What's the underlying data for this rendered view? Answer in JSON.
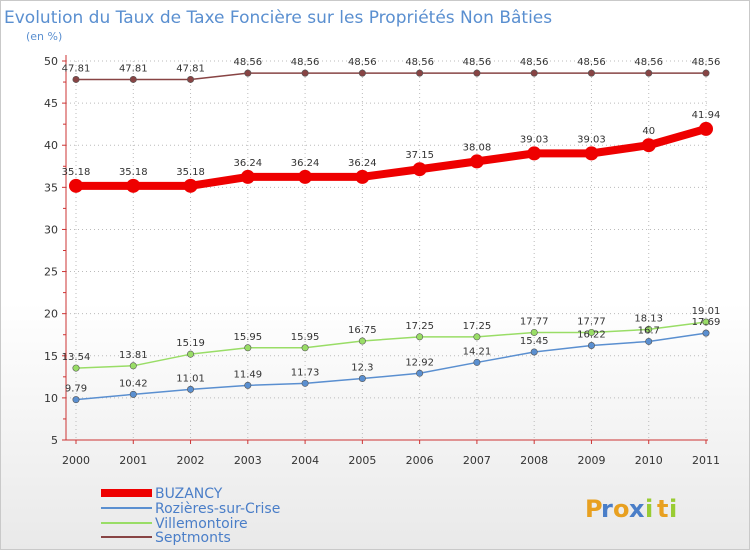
{
  "chart_data": {
    "type": "line",
    "title": "Evolution du Taux de Taxe Foncière sur les Propriétés Non Bâties",
    "subtitle": "(en %)",
    "xlabel": "",
    "ylabel": "(en %)",
    "categories": [
      "2000",
      "2001",
      "2002",
      "2003",
      "2004",
      "2005",
      "2006",
      "2007",
      "2008",
      "2009",
      "2010",
      "2011"
    ],
    "ylim": [
      5,
      50
    ],
    "yticks": [
      5,
      10,
      15,
      20,
      25,
      30,
      35,
      40,
      45,
      50
    ],
    "legend_position": "bottom-left",
    "series": [
      {
        "name": "BUZANCY",
        "color": "#ee0000",
        "values": [
          35.18,
          35.18,
          35.18,
          36.24,
          36.24,
          36.24,
          37.15,
          38.08,
          39.03,
          39.03,
          40,
          41.94
        ],
        "labels": [
          "35.18",
          "35.18",
          "35.18",
          "36.24",
          "36.24",
          "36.24",
          "37.15",
          "38.08",
          "39.03",
          "39.03",
          "40",
          "41.94"
        ]
      },
      {
        "name": "Rozières-sur-Crise",
        "color": "#5a8fd0",
        "values": [
          9.79,
          10.42,
          11.01,
          11.49,
          11.73,
          12.3,
          12.92,
          14.21,
          15.45,
          16.22,
          16.7,
          17.69
        ],
        "labels": [
          "9.79",
          "10.42",
          "11.01",
          "11.49",
          "11.73",
          "12.3",
          "12.92",
          "14.21",
          "15.45",
          "16.22",
          "16.7",
          "17.69"
        ]
      },
      {
        "name": "Villemontoire",
        "color": "#99dd66",
        "values": [
          13.54,
          13.81,
          15.19,
          15.95,
          15.95,
          16.75,
          17.25,
          17.25,
          17.77,
          17.77,
          18.13,
          19.01
        ],
        "labels": [
          "13.54",
          "13.81",
          "15.19",
          "15.95",
          "15.95",
          "16.75",
          "17.25",
          "17.25",
          "17.77",
          "17.77",
          "18.13",
          "19.01"
        ]
      },
      {
        "name": "Septmonts",
        "color": "#884444",
        "values": [
          47.81,
          47.81,
          47.81,
          48.56,
          48.56,
          48.56,
          48.56,
          48.56,
          48.56,
          48.56,
          48.56,
          48.56
        ],
        "labels": [
          "47.81",
          "47.81",
          "47.81",
          "48.56",
          "48.56",
          "48.56",
          "48.56",
          "48.56",
          "48.56",
          "48.56",
          "48.56",
          "48.56"
        ]
      }
    ]
  },
  "logo": {
    "letters": [
      "P",
      "r",
      "o",
      "x",
      "i",
      "t",
      "i"
    ],
    "colors": [
      "#e8a020",
      "#4a7ec8",
      "#e8a020",
      "#4a7ec8",
      "#99cc33",
      "#e8a020",
      "#99cc33"
    ]
  }
}
